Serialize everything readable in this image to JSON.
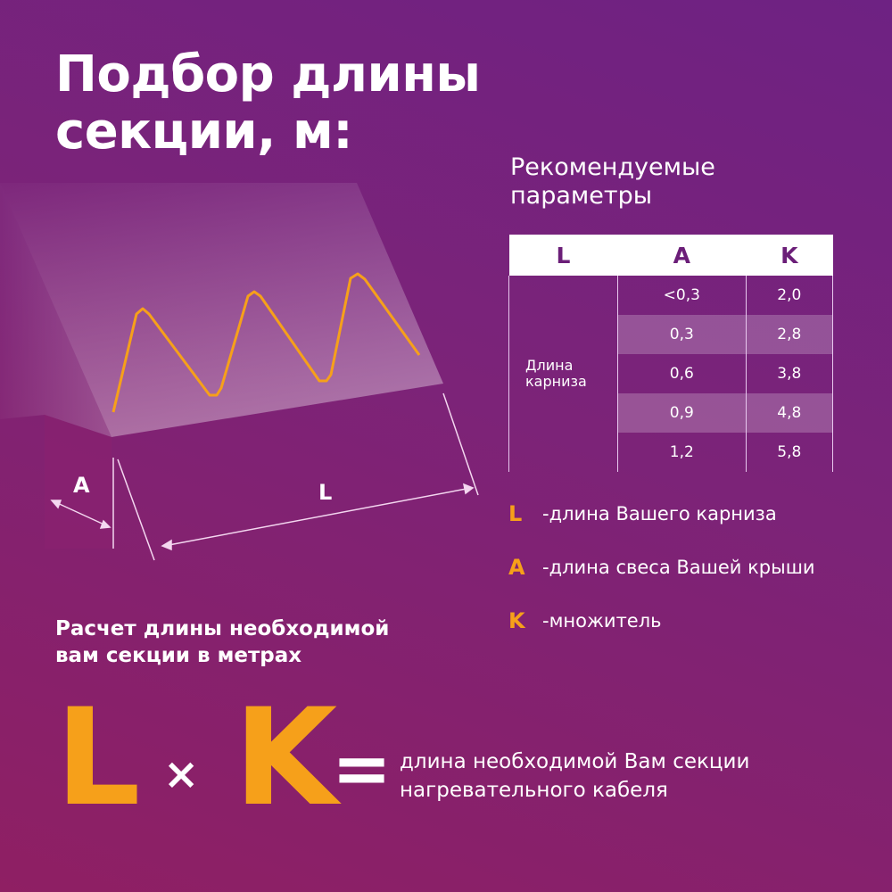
{
  "title": [
    "Подбор длины",
    "секции, м:"
  ],
  "recommended": [
    "Рекомендуемые",
    "параметры"
  ],
  "table": {
    "headers": [
      "L",
      "A",
      "K"
    ],
    "row_label": [
      "Длина",
      "карниза"
    ],
    "rows": [
      {
        "A": "<0,3",
        "K": "2,0"
      },
      {
        "A": "0,3",
        "K": "2,8"
      },
      {
        "A": "0,6",
        "K": "3,8"
      },
      {
        "A": "0,9",
        "K": "4,8"
      },
      {
        "A": "1,2",
        "K": "5,8"
      }
    ]
  },
  "legend": [
    {
      "key": "L",
      "text": "-длина Вашего карниза"
    },
    {
      "key": "A",
      "text": "-длина свеса Вашей крыши"
    },
    {
      "key": "K",
      "text": "-множитель"
    }
  ],
  "diagram": {
    "label_a": "A",
    "label_l": "L",
    "cable_color": "#f6a01a"
  },
  "calc_title": [
    "Расчет длины необходимой",
    "вам секции в метрах"
  ],
  "formula": {
    "left": "L",
    "times": "×",
    "right": "K",
    "equals": "=",
    "result": [
      "длина необходимой Вам секции",
      "нагревательного кабеля"
    ]
  },
  "colors": {
    "accent": "#f6a01a",
    "header_text": "#6b1e78"
  }
}
